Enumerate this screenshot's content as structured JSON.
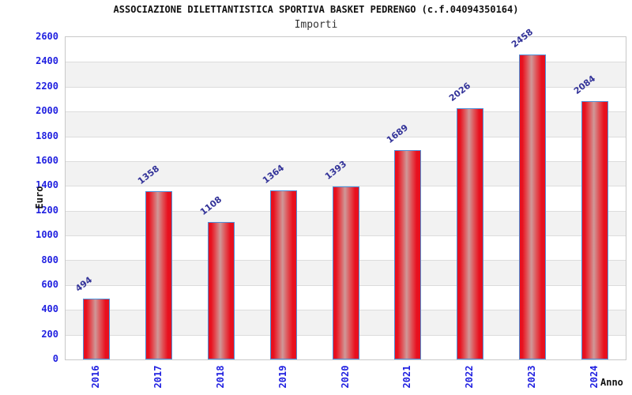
{
  "chart_data": {
    "type": "bar",
    "title": "ASSOCIAZIONE DILETTANTISTICA SPORTIVA BASKET PEDRENGO (c.f.04094350164)",
    "subtitle": "Importi",
    "xlabel": "Anno",
    "ylabel": "Euro",
    "categories": [
      "2016",
      "2017",
      "2018",
      "2019",
      "2020",
      "2021",
      "2022",
      "2023",
      "2024"
    ],
    "values": [
      494,
      1358,
      1108,
      1364,
      1393,
      1689,
      2026,
      2458,
      2084
    ],
    "ylim": [
      0,
      2600
    ],
    "ytick_step": 200,
    "legend": "none",
    "grid": "horizontal gridlines with alternating white/gray bands",
    "colors": {
      "bar_fill": "#e8101e",
      "bar_highlight": "#cf9898",
      "bar_border": "#4d90d9",
      "axis_tick_label": "#1f1fe0",
      "value_label": "#333399",
      "band_gray": "#f2f2f2",
      "grid_line": "#dcdcdc",
      "plot_border": "#c8c8c8",
      "title_text": "#111111"
    }
  }
}
